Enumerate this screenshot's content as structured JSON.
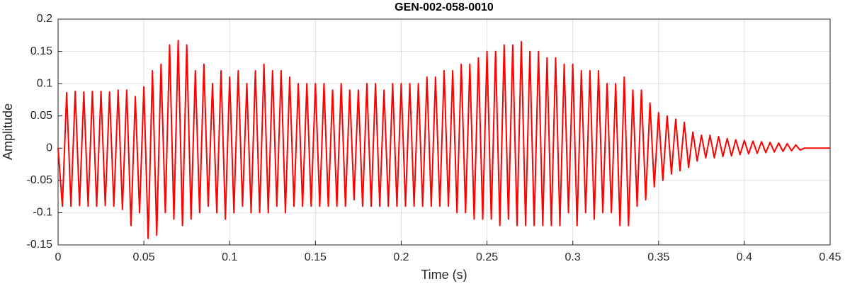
{
  "chart_data": {
    "type": "line",
    "title": "GEN-002-058-0010",
    "x_label": "Time (s)",
    "y_label": "Amplitude",
    "color": "#ff0000",
    "grid": true,
    "xlim": [
      0,
      0.45
    ],
    "ylim": [
      -0.15,
      0.2
    ],
    "xticks": [
      0,
      0.05,
      0.1,
      0.15,
      0.2,
      0.25,
      0.3,
      0.35,
      0.4,
      0.45
    ],
    "yticks": [
      -0.15,
      -0.1,
      -0.05,
      0,
      0.05,
      0.1,
      0.15,
      0.2
    ],
    "x": [
      0,
      0.0025,
      0.005,
      0.0075,
      0.01,
      0.0125,
      0.015,
      0.0175,
      0.02,
      0.0225,
      0.025,
      0.0275,
      0.03,
      0.0325,
      0.035,
      0.0375,
      0.04,
      0.0425,
      0.045,
      0.0475,
      0.05,
      0.0525,
      0.055,
      0.0575,
      0.06,
      0.0625,
      0.065,
      0.0675,
      0.07,
      0.0725,
      0.075,
      0.0775,
      0.08,
      0.0825,
      0.085,
      0.0875,
      0.09,
      0.0925,
      0.095,
      0.0975,
      0.1,
      0.1025,
      0.105,
      0.1075,
      0.11,
      0.1125,
      0.115,
      0.1175,
      0.12,
      0.1225,
      0.125,
      0.1275,
      0.13,
      0.1325,
      0.135,
      0.1375,
      0.14,
      0.1425,
      0.145,
      0.1475,
      0.15,
      0.1525,
      0.155,
      0.1575,
      0.16,
      0.1625,
      0.165,
      0.1675,
      0.17,
      0.1725,
      0.175,
      0.1775,
      0.18,
      0.1825,
      0.185,
      0.1875,
      0.19,
      0.1925,
      0.195,
      0.1975,
      0.2,
      0.2025,
      0.205,
      0.2075,
      0.21,
      0.2125,
      0.215,
      0.2175,
      0.22,
      0.2225,
      0.225,
      0.2275,
      0.23,
      0.2325,
      0.235,
      0.2375,
      0.24,
      0.2425,
      0.245,
      0.2475,
      0.25,
      0.2525,
      0.255,
      0.2575,
      0.26,
      0.2625,
      0.265,
      0.2675,
      0.27,
      0.2725,
      0.275,
      0.2775,
      0.28,
      0.2825,
      0.285,
      0.2875,
      0.29,
      0.2925,
      0.295,
      0.2975,
      0.3,
      0.3025,
      0.305,
      0.3075,
      0.31,
      0.3125,
      0.315,
      0.3175,
      0.32,
      0.3225,
      0.325,
      0.3275,
      0.33,
      0.3325,
      0.335,
      0.3375,
      0.34,
      0.3425,
      0.345,
      0.3475,
      0.35,
      0.3525,
      0.355,
      0.3575,
      0.36,
      0.3625,
      0.365,
      0.3675,
      0.37,
      0.3725,
      0.375,
      0.3775,
      0.38,
      0.3825,
      0.385,
      0.3875,
      0.39,
      0.3925,
      0.395,
      0.3975,
      0.4,
      0.4025,
      0.405,
      0.4075,
      0.41,
      0.4125,
      0.415,
      0.4175,
      0.42,
      0.4225,
      0.425,
      0.4275,
      0.43,
      0.4325,
      0.435,
      0.4375,
      0.44,
      0.4425,
      0.445,
      0.4475,
      0.45
    ],
    "values": [
      0,
      -0.09,
      0.086,
      -0.09,
      0.088,
      -0.089,
      0.087,
      -0.09,
      0.088,
      -0.09,
      0.088,
      -0.089,
      0.087,
      -0.09,
      0.09,
      -0.095,
      0.09,
      -0.12,
      0.08,
      -0.1,
      0.095,
      -0.14,
      0.12,
      -0.135,
      0.13,
      -0.1,
      0.16,
      -0.11,
      0.167,
      -0.12,
      0.16,
      -0.11,
      0.12,
      -0.1,
      0.13,
      -0.09,
      0.1,
      -0.1,
      0.12,
      -0.11,
      0.11,
      -0.1,
      0.12,
      -0.09,
      0.1,
      -0.1,
      0.12,
      -0.1,
      0.13,
      -0.1,
      0.12,
      -0.09,
      0.12,
      -0.1,
      0.11,
      -0.09,
      0.1,
      -0.09,
      0.1,
      -0.09,
      0.1,
      -0.09,
      0.1,
      -0.09,
      0.09,
      -0.09,
      0.1,
      -0.09,
      0.09,
      -0.08,
      0.09,
      -0.09,
      0.1,
      -0.09,
      0.1,
      -0.09,
      0.09,
      -0.09,
      0.1,
      -0.09,
      0.1,
      -0.09,
      0.1,
      -0.09,
      0.1,
      -0.09,
      0.11,
      -0.09,
      0.11,
      -0.09,
      0.12,
      -0.09,
      0.12,
      -0.1,
      0.13,
      -0.1,
      0.13,
      -0.11,
      0.14,
      -0.11,
      0.15,
      -0.11,
      0.15,
      -0.12,
      0.16,
      -0.11,
      0.16,
      -0.12,
      0.165,
      -0.12,
      0.15,
      -0.12,
      0.15,
      -0.12,
      0.14,
      -0.12,
      0.14,
      -0.12,
      0.13,
      -0.1,
      0.13,
      -0.12,
      0.12,
      -0.1,
      0.12,
      -0.11,
      0.12,
      -0.1,
      0.1,
      -0.1,
      0.1,
      -0.12,
      0.11,
      -0.12,
      0.09,
      -0.09,
      0.09,
      -0.08,
      0.07,
      -0.06,
      0.055,
      -0.05,
      0.05,
      -0.04,
      0.045,
      -0.035,
      0.04,
      -0.03,
      0.025,
      -0.02,
      0.02,
      -0.015,
      0.02,
      -0.015,
      0.018,
      -0.013,
      0.015,
      -0.012,
      0.013,
      -0.01,
      0.012,
      -0.009,
      0.011,
      -0.008,
      0.01,
      -0.007,
      0.009,
      -0.006,
      0.008,
      -0.005,
      0.007,
      -0.004,
      0.005,
      -0.003,
      0,
      0,
      0,
      0,
      0,
      0,
      0
    ]
  }
}
